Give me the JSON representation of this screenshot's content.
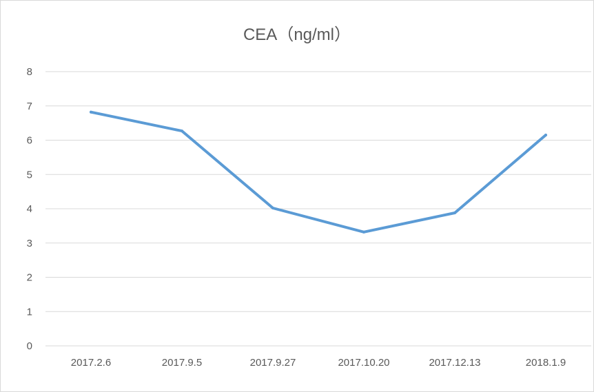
{
  "chart_data": {
    "type": "line",
    "title": "CEA（ng/ml）",
    "categories": [
      "2017.2.6",
      "2017.9.5",
      "2017.9.27",
      "2017.10.20",
      "2017.12.13",
      "2018.1.9"
    ],
    "series": [
      {
        "name": "CEA",
        "values": [
          6.82,
          6.27,
          4.02,
          3.32,
          3.88,
          6.15
        ],
        "color": "#5b9bd5"
      }
    ],
    "xlabel": "",
    "ylabel": "",
    "ylim": [
      0,
      8
    ],
    "yticks": [
      "0",
      "1",
      "2",
      "3",
      "4",
      "5",
      "6",
      "7",
      "8"
    ],
    "grid": true,
    "legend": "none",
    "gridColor": "#d9d9d9",
    "textColor": "#595959"
  }
}
